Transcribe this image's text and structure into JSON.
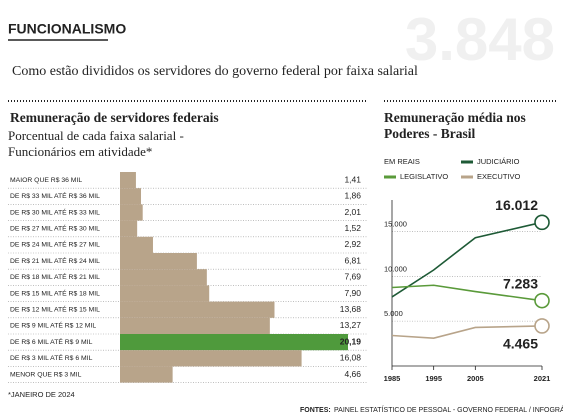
{
  "header": {
    "section": "FUNCIONALISMO",
    "watermark": "3.848",
    "subtitle": "Como estão divididos os servidores do governo federal por faixa salarial"
  },
  "chart_data": [
    {
      "type": "bar",
      "orientation": "horizontal",
      "title": "Remuneração de servidores federais",
      "subtitle": "Porcentual de cada faixa salarial - Funcionários em atividade*",
      "categories": [
        "MAIOR QUE R$ 36 MIL",
        "DE R$ 33 MIL ATÉ R$ 36 MIL",
        "DE R$ 30 MIL ATÉ R$ 33 MIL",
        "DE R$ 27 MIL ATÉ R$ 30 MIL",
        "DE R$ 24 MIL ATÉ R$ 27 MIL",
        "DE R$ 21 MIL ATÉ R$ 24 MIL",
        "DE R$ 18 MIL ATÉ R$ 21 MIL",
        "DE R$ 15 MIL ATÉ R$ 18 MIL",
        "DE R$ 12 MIL ATÉ R$ 15 MIL",
        "DE R$ 9 MIL ATÉ R$ 12 MIL",
        "DE R$ 6 MIL ATÉ R$ 9 MIL",
        "DE R$ 3 MIL ATÉ R$ 6 MIL",
        "MENOR QUE R$ 3 MIL"
      ],
      "values": [
        1.41,
        1.86,
        2.01,
        1.52,
        2.92,
        6.81,
        7.69,
        7.9,
        13.68,
        13.27,
        20.19,
        16.08,
        4.66
      ],
      "value_labels": [
        "1,41",
        "1,86",
        "2,01",
        "1,52",
        "2,92",
        "6,81",
        "7,69",
        "7,90",
        "13,68",
        "13,27",
        "20,19",
        "16,08",
        "4,66"
      ],
      "colors": [
        "#b8a48a",
        "#b8a48a",
        "#b8a48a",
        "#b8a48a",
        "#b8a48a",
        "#b8a48a",
        "#b8a48a",
        "#b8a48a",
        "#b8a48a",
        "#b8a48a",
        "#4f9a3c",
        "#b8a48a",
        "#b8a48a"
      ],
      "footnote": "*JANEIRO DE 2024"
    },
    {
      "type": "line",
      "title": "Remuneração média nos Poderes - Brasil",
      "y_label": "EM REAIS",
      "x": [
        1985,
        1995,
        2005,
        2021
      ],
      "xlim": [
        1985,
        2021
      ],
      "xticks": [
        1985,
        1995,
        2005,
        2021
      ],
      "ylim": [
        0,
        18500
      ],
      "yticks": [
        {
          "value": 5000,
          "label": "5.000"
        },
        {
          "value": 10000,
          "label": "10.000"
        },
        {
          "value": 15000,
          "label": "15.000"
        }
      ],
      "grid": true,
      "series": [
        {
          "name": "JUDICIÁRIO",
          "color": "#1e5a36",
          "values": [
            7700,
            10700,
            14300,
            16012
          ],
          "value_labels": [
            null,
            null,
            null,
            "16.012"
          ]
        },
        {
          "name": "LEGISLATIVO",
          "color": "#5a9a3a",
          "values": [
            8750,
            9000,
            8300,
            7283
          ],
          "value_labels": [
            null,
            null,
            null,
            "7.283"
          ]
        },
        {
          "name": "EXECUTIVO",
          "color": "#b8a48a",
          "values": [
            3400,
            3100,
            4300,
            4465
          ],
          "value_labels": [
            null,
            null,
            null,
            "4.465"
          ]
        }
      ]
    }
  ],
  "footer": {
    "source_label": "FONTES:",
    "source": "PAINEL ESTATÍSTICO DE PESSOAL - GOVERNO FEDERAL / INFOGRÁFICO: ESTADÃO"
  }
}
